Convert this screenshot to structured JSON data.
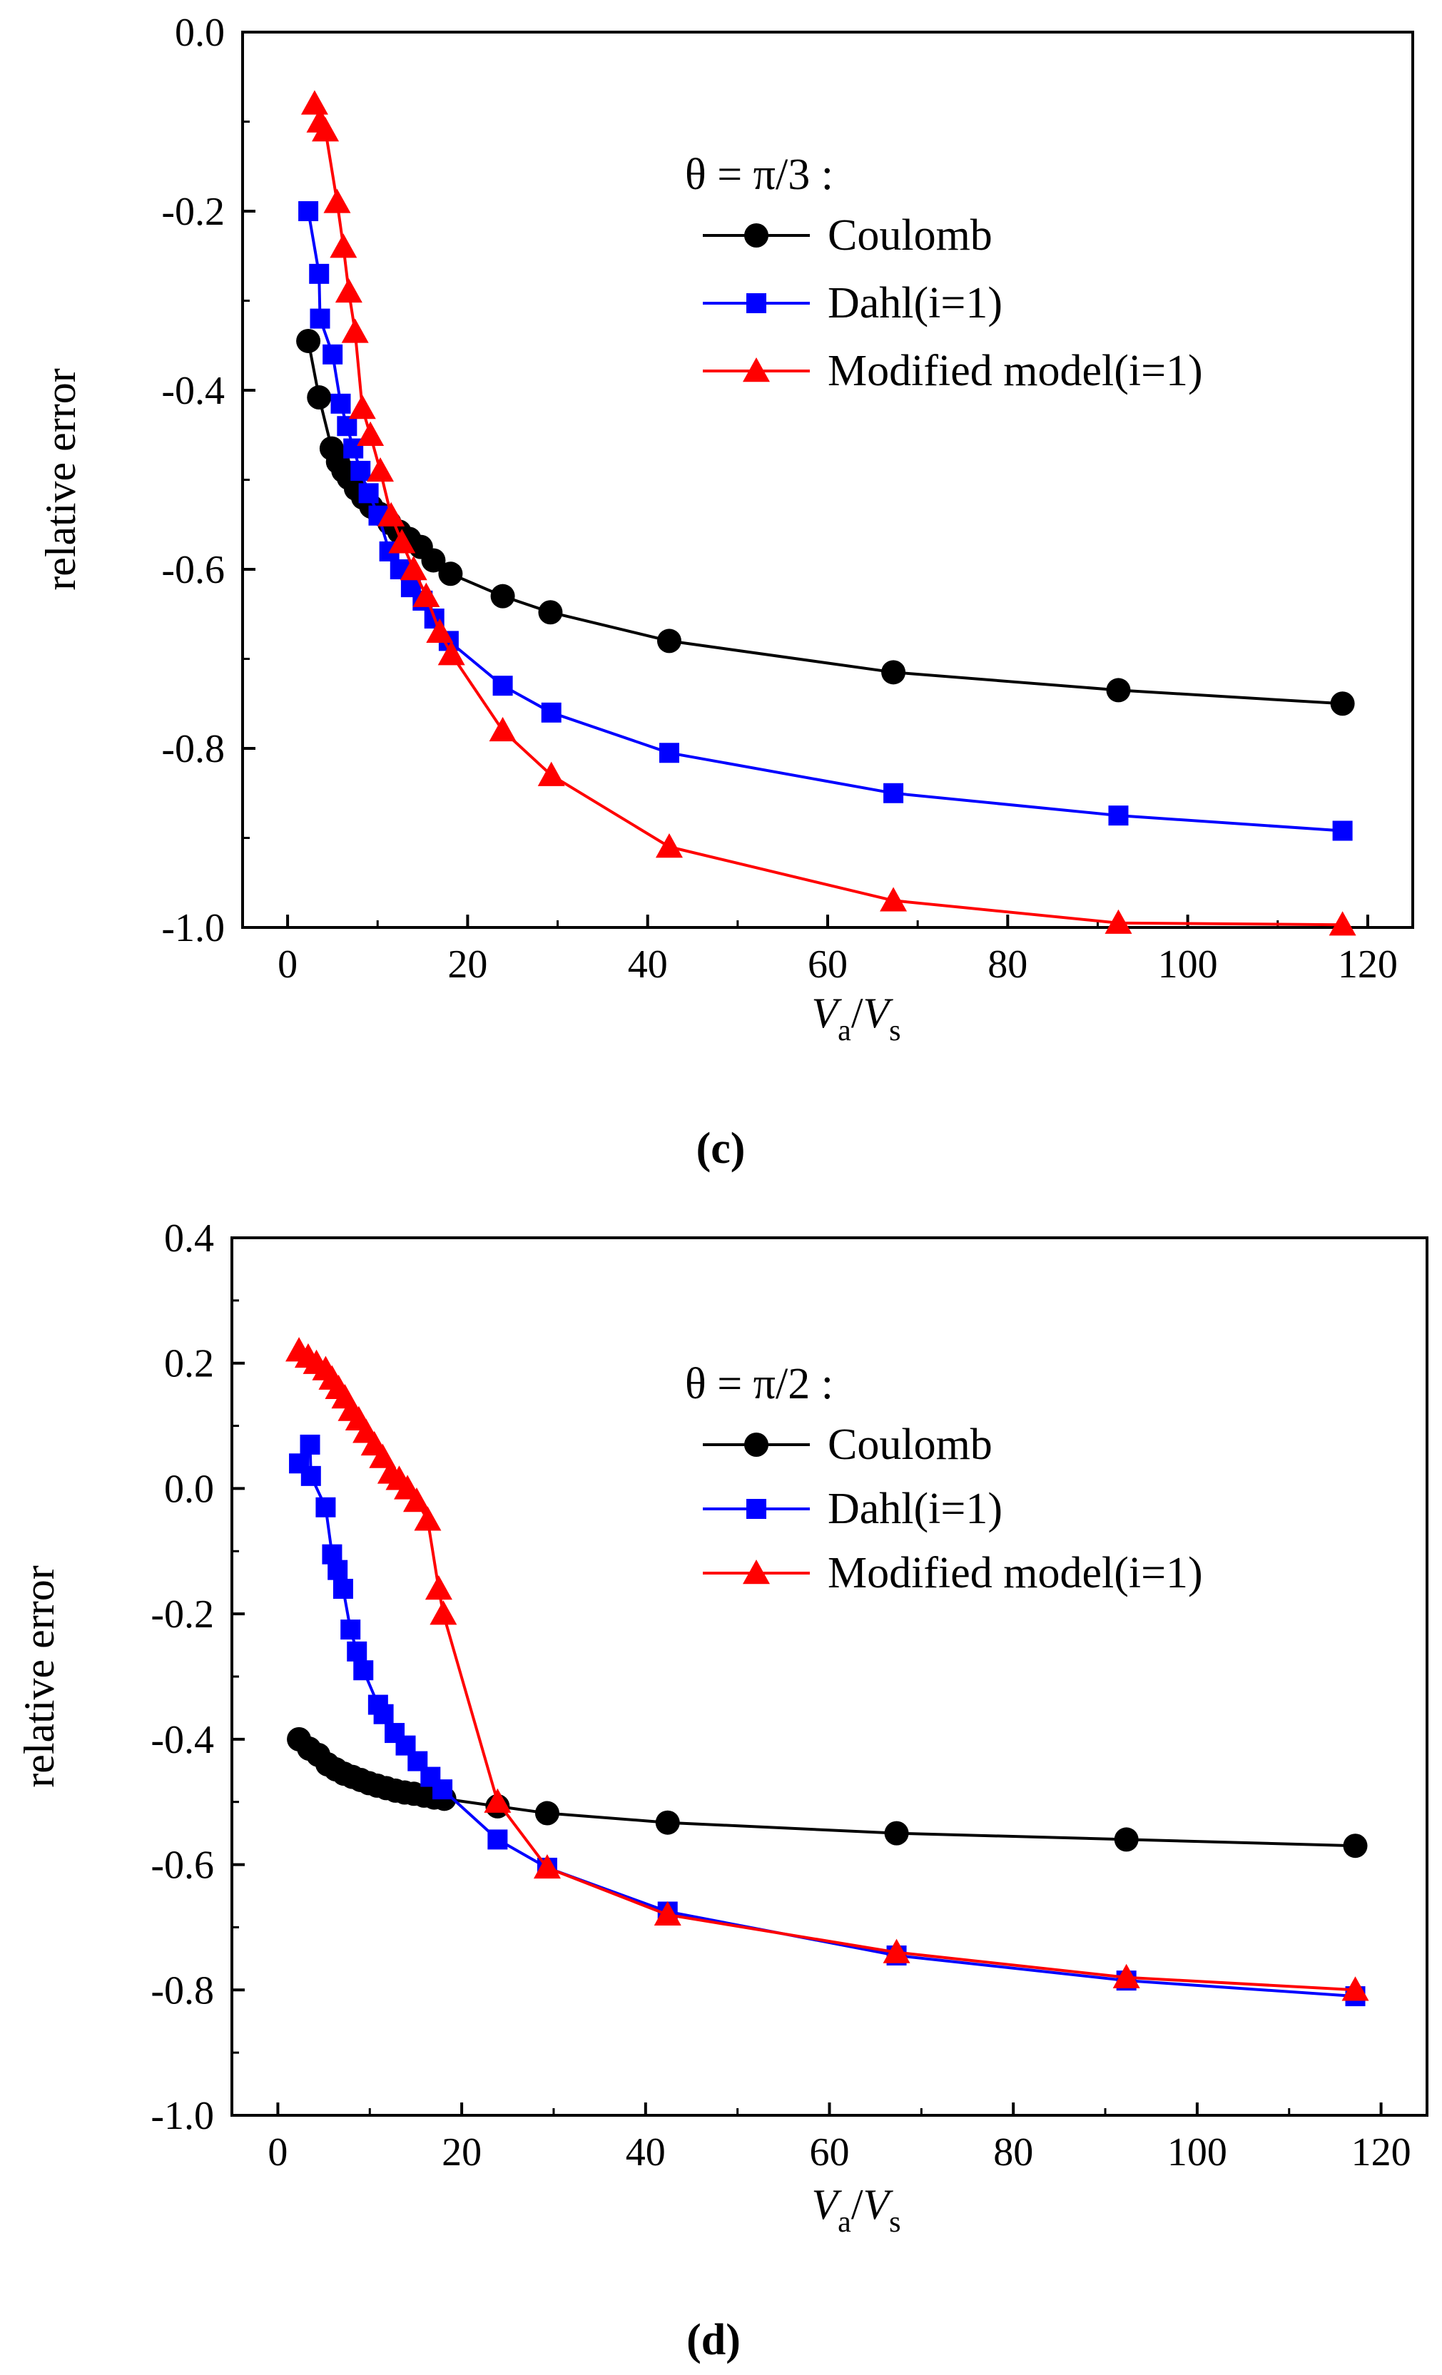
{
  "chart_data": [
    {
      "type": "line",
      "panel_label": "c",
      "legend_title": "θ = π/3 :",
      "xlabel_main": "V",
      "xlabel_sub_a": "a",
      "xlabel_slash": "/",
      "xlabel_main2": "V",
      "xlabel_sub_s": "s",
      "ylabel": "relative error",
      "xlim": [
        -5,
        125
      ],
      "ylim": [
        -1.0,
        0.0
      ],
      "xticks": [
        0,
        20,
        40,
        60,
        80,
        100,
        120
      ],
      "xtick_labels": [
        "0",
        "20",
        "40",
        "60",
        "80",
        "100",
        "120"
      ],
      "yticks": [
        -1.0,
        -0.8,
        -0.6,
        -0.4,
        -0.2,
        0.0
      ],
      "ytick_labels": [
        "-1.0",
        "-0.8",
        "-0.6",
        "-0.4",
        "-0.2",
        "0.0"
      ],
      "series": [
        {
          "name": "Coulomb",
          "color": "#000000",
          "marker": "circle",
          "x": [
            2.3,
            3.5,
            4.9,
            5.6,
            6.2,
            6.8,
            7.6,
            8.4,
            9.3,
            10.2,
            11.3,
            12.4,
            13.5,
            14.8,
            16.2,
            18.1,
            23.9,
            29.2,
            42.4,
            67.3,
            92.3,
            117.2
          ],
          "y": [
            -0.345,
            -0.408,
            -0.465,
            -0.48,
            -0.49,
            -0.498,
            -0.51,
            -0.52,
            -0.53,
            -0.538,
            -0.548,
            -0.558,
            -0.566,
            -0.575,
            -0.59,
            -0.605,
            -0.63,
            -0.648,
            -0.68,
            -0.715,
            -0.735,
            -0.75
          ]
        },
        {
          "name": "Dahl(i=1)",
          "color": "#0000ff",
          "marker": "square",
          "x": [
            2.3,
            3.5,
            3.6,
            5.0,
            5.9,
            6.6,
            7.3,
            8.1,
            9.0,
            10.1,
            11.3,
            12.5,
            13.7,
            15.0,
            16.3,
            17.9,
            23.9,
            29.3,
            42.4,
            67.3,
            92.3,
            117.2
          ],
          "y": [
            -0.2,
            -0.27,
            -0.32,
            -0.36,
            -0.415,
            -0.44,
            -0.465,
            -0.49,
            -0.515,
            -0.54,
            -0.58,
            -0.6,
            -0.62,
            -0.635,
            -0.655,
            -0.68,
            -0.73,
            -0.76,
            -0.805,
            -0.85,
            -0.875,
            -0.892
          ]
        },
        {
          "name": "Modified model(i=1)",
          "color": "#ff0000",
          "marker": "triangle",
          "x": [
            3.0,
            3.6,
            4.2,
            5.5,
            6.2,
            6.8,
            7.5,
            8.3,
            9.2,
            10.3,
            11.5,
            12.7,
            14.0,
            15.4,
            16.9,
            18.2,
            23.9,
            29.3,
            42.4,
            67.3,
            92.3,
            117.2
          ],
          "y": [
            -0.08,
            -0.1,
            -0.11,
            -0.19,
            -0.24,
            -0.29,
            -0.335,
            -0.42,
            -0.45,
            -0.49,
            -0.54,
            -0.57,
            -0.6,
            -0.63,
            -0.67,
            -0.695,
            -0.78,
            -0.83,
            -0.91,
            -0.97,
            -0.995,
            -0.997
          ]
        }
      ]
    },
    {
      "type": "line",
      "panel_label": "d",
      "legend_title": "θ = π/2 :",
      "xlabel_main": "V",
      "xlabel_sub_a": "a",
      "xlabel_slash": "/",
      "xlabel_main2": "V",
      "xlabel_sub_s": "s",
      "ylabel": "relative error",
      "xlim": [
        -5,
        125
      ],
      "ylim": [
        -1.0,
        0.4
      ],
      "xticks": [
        0,
        20,
        40,
        60,
        80,
        100,
        120
      ],
      "xtick_labels": [
        "0",
        "20",
        "40",
        "60",
        "80",
        "100",
        "120"
      ],
      "yticks": [
        -1.0,
        -0.8,
        -0.6,
        -0.4,
        -0.2,
        0.0,
        0.2,
        0.4
      ],
      "ytick_labels": [
        "-1.0",
        "-0.8",
        "-0.6",
        "-0.4",
        "-0.2",
        "0.0",
        "0.2",
        "0.4"
      ],
      "series": [
        {
          "name": "Coulomb",
          "color": "#000000",
          "marker": "circle",
          "x": [
            2.3,
            3.4,
            4.4,
            5.4,
            6.3,
            7.2,
            8.1,
            9.0,
            9.9,
            10.8,
            11.8,
            12.8,
            13.8,
            14.8,
            15.9,
            17.0,
            18.1,
            23.9,
            29.3,
            42.4,
            67.3,
            92.3,
            117.2
          ],
          "y": [
            -0.4,
            -0.415,
            -0.425,
            -0.44,
            -0.448,
            -0.455,
            -0.46,
            -0.465,
            -0.47,
            -0.474,
            -0.478,
            -0.482,
            -0.485,
            -0.487,
            -0.49,
            -0.493,
            -0.495,
            -0.507,
            -0.518,
            -0.533,
            -0.55,
            -0.56,
            -0.57
          ]
        },
        {
          "name": "Dahl(i=1)",
          "color": "#0000ff",
          "marker": "square",
          "x": [
            2.3,
            3.5,
            3.6,
            5.2,
            5.9,
            6.5,
            7.1,
            7.9,
            8.6,
            9.3,
            10.9,
            11.5,
            12.7,
            13.9,
            15.2,
            16.6,
            17.9,
            23.9,
            29.3,
            42.4,
            67.3,
            92.3,
            117.2
          ],
          "y": [
            0.04,
            0.07,
            0.02,
            -0.03,
            -0.105,
            -0.13,
            -0.16,
            -0.225,
            -0.26,
            -0.29,
            -0.345,
            -0.36,
            -0.39,
            -0.41,
            -0.435,
            -0.46,
            -0.48,
            -0.56,
            -0.605,
            -0.675,
            -0.745,
            -0.785,
            -0.81
          ]
        },
        {
          "name": "Modified model(i=1)",
          "color": "#ff0000",
          "marker": "triangle",
          "x": [
            2.3,
            3.3,
            4.2,
            5.2,
            5.9,
            6.6,
            7.3,
            8.0,
            8.8,
            9.6,
            10.5,
            11.4,
            12.3,
            13.2,
            14.1,
            15.1,
            16.3,
            17.5,
            18.0,
            23.9,
            29.3,
            42.4,
            67.3,
            92.3,
            117.2
          ],
          "y": [
            0.22,
            0.21,
            0.2,
            0.19,
            0.175,
            0.16,
            0.145,
            0.125,
            0.11,
            0.09,
            0.07,
            0.05,
            0.025,
            0.015,
            0.0,
            -0.02,
            -0.05,
            -0.16,
            -0.2,
            -0.5,
            -0.605,
            -0.68,
            -0.74,
            -0.78,
            -0.8
          ]
        }
      ]
    }
  ]
}
